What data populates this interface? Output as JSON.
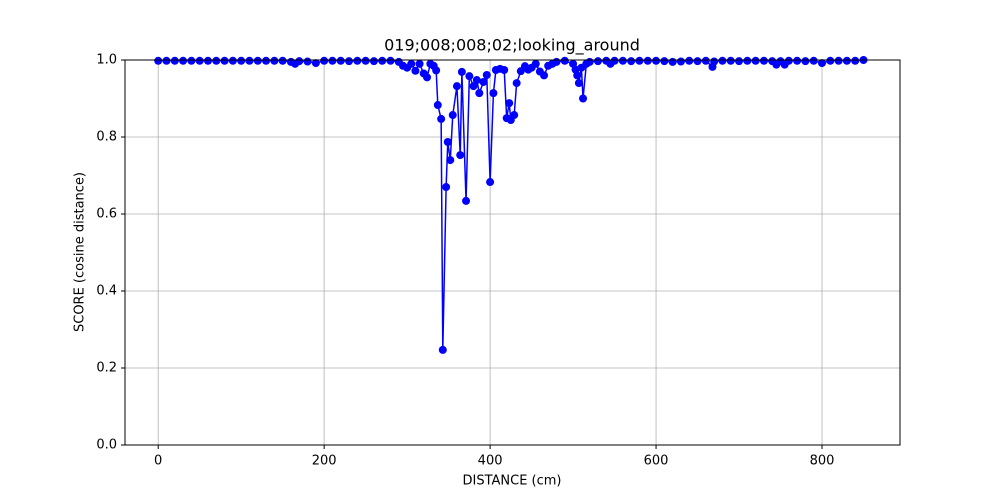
{
  "chart_data": {
    "type": "line",
    "title": "019;008;008;02;looking_around",
    "xlabel": "DISTANCE (cm)",
    "ylabel": "SCORE (cosine distance)",
    "x": [
      0,
      10,
      20,
      30,
      40,
      50,
      60,
      70,
      80,
      90,
      100,
      110,
      120,
      130,
      140,
      150,
      160,
      165,
      170,
      180,
      190,
      200,
      210,
      220,
      230,
      240,
      250,
      260,
      270,
      280,
      290,
      295,
      300,
      305,
      310,
      315,
      320,
      324,
      328,
      332,
      335,
      337,
      341,
      343,
      347,
      349,
      352,
      355,
      360,
      364,
      366,
      371,
      375,
      380,
      384,
      387,
      392,
      396,
      400,
      404,
      407,
      412,
      417,
      420,
      423,
      425,
      429,
      432,
      437,
      442,
      446,
      450,
      455,
      460,
      465,
      470,
      475,
      480,
      490,
      500,
      503,
      505,
      507,
      510,
      512,
      516,
      520,
      530,
      540,
      545,
      550,
      560,
      570,
      580,
      590,
      600,
      610,
      620,
      630,
      640,
      650,
      660,
      668,
      670,
      680,
      690,
      700,
      710,
      720,
      730,
      740,
      745,
      750,
      755,
      760,
      770,
      780,
      790,
      800,
      810,
      820,
      830,
      840,
      850
    ],
    "series": [
      {
        "color": "#0000ff",
        "values": [
          0.998,
          0.998,
          0.998,
          0.998,
          0.998,
          0.998,
          0.998,
          0.998,
          0.998,
          0.998,
          0.998,
          0.998,
          0.998,
          0.998,
          0.998,
          0.998,
          0.995,
          0.99,
          0.997,
          0.996,
          0.992,
          0.998,
          0.998,
          0.998,
          0.997,
          0.998,
          0.998,
          0.997,
          0.998,
          0.998,
          0.995,
          0.985,
          0.98,
          0.99,
          0.972,
          0.99,
          0.965,
          0.955,
          0.99,
          0.985,
          0.973,
          0.883,
          0.847,
          0.247,
          0.67,
          0.787,
          0.74,
          0.857,
          0.932,
          0.753,
          0.969,
          0.634,
          0.958,
          0.932,
          0.948,
          0.914,
          0.943,
          0.961,
          0.683,
          0.914,
          0.974,
          0.977,
          0.974,
          0.849,
          0.888,
          0.844,
          0.857,
          0.94,
          0.971,
          0.984,
          0.975,
          0.98,
          0.99,
          0.97,
          0.96,
          0.985,
          0.99,
          0.995,
          0.998,
          0.99,
          0.975,
          0.96,
          0.94,
          0.98,
          0.9,
          0.99,
          0.995,
          0.997,
          0.998,
          0.99,
          0.998,
          0.998,
          0.997,
          0.998,
          0.998,
          0.998,
          0.997,
          0.995,
          0.996,
          0.998,
          0.997,
          0.998,
          0.982,
          0.996,
          0.998,
          0.998,
          0.997,
          0.998,
          0.998,
          0.998,
          0.997,
          0.988,
          0.997,
          0.988,
          0.998,
          0.998,
          0.997,
          0.998,
          0.992,
          0.998,
          0.998,
          0.998,
          0.998,
          1.0
        ]
      }
    ],
    "xlim": [
      -40,
      894
    ],
    "ylim": [
      0,
      1
    ],
    "xticks": [
      0,
      200,
      400,
      600,
      800
    ],
    "yticks": [
      {
        "value": 0,
        "label": "0.0"
      },
      {
        "value": 0.2,
        "label": "0.2"
      },
      {
        "value": 0.4,
        "label": "0.4"
      },
      {
        "value": 0.6,
        "label": "0.6"
      },
      {
        "value": 0.8,
        "label": "0.8"
      },
      {
        "value": 1,
        "label": "1.0"
      }
    ],
    "grid": true
  }
}
